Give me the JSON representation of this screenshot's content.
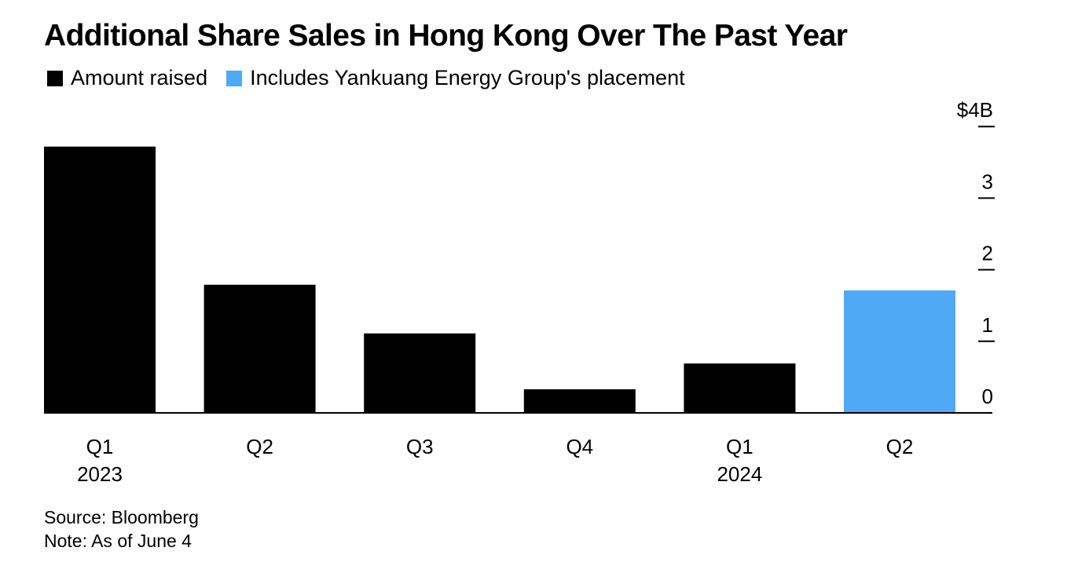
{
  "title": "Additional Share Sales in Hong Kong Over The Past Year",
  "legend": [
    {
      "label": "Amount raised",
      "color": "#000000"
    },
    {
      "label": "Includes Yankuang Energy Group's placement",
      "color": "#4fa9f5"
    }
  ],
  "chart_data": {
    "type": "bar",
    "categories": [
      "Q1",
      "Q2",
      "Q3",
      "Q4",
      "Q1",
      "Q2"
    ],
    "year_labels": [
      "2023",
      "",
      "",
      "",
      "2024",
      ""
    ],
    "values": [
      3.72,
      1.79,
      1.11,
      0.33,
      0.69,
      1.71
    ],
    "colors": [
      "#000000",
      "#000000",
      "#000000",
      "#000000",
      "#000000",
      "#4fa9f5"
    ],
    "ylim": [
      0,
      4
    ],
    "yticks": [
      0,
      1,
      2,
      3,
      4
    ],
    "ytick_labels": [
      "0",
      "1",
      "2",
      "3",
      "$4B"
    ],
    "axis_position": "right",
    "grid": false
  },
  "footer": {
    "source": "Source: Bloomberg",
    "note": "Note: As of June 4"
  }
}
